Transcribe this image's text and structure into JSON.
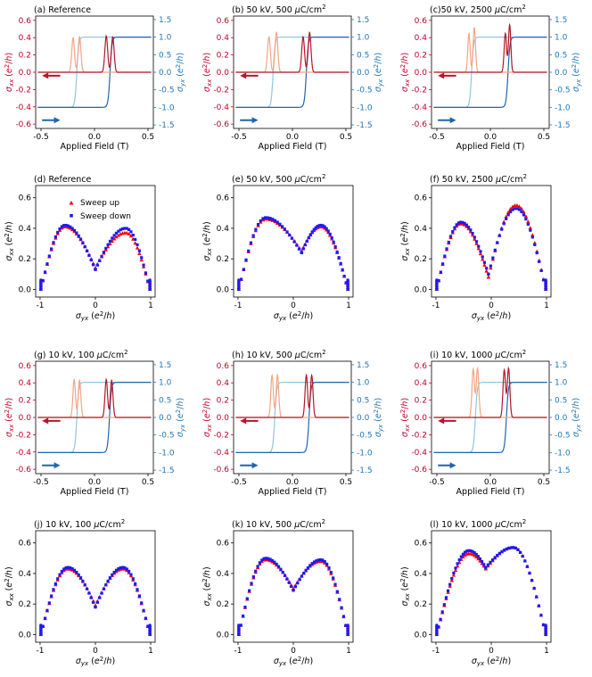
{
  "colors": {
    "sxx_up": "#b2182b",
    "sxx_down": "#f4a582",
    "syx_up": "#2166ac",
    "syx_down": "#92c5de",
    "sweep_up": "#ff0000",
    "sweep_down": "#1a1aff",
    "left_axis": "#c0002a",
    "right_axis": "#1f77b4"
  },
  "labels": {
    "xlabel_field": "Applied Field (T)",
    "ylabel_sxx": "σxx (e²/h)",
    "ylabel_syx": "σyx (e²/h)",
    "xlabel_syx": "σyx (e²/h)",
    "legend_up": "Sweep up",
    "legend_down": "Sweep down"
  },
  "chart_data": [
    {
      "id": "a",
      "type": "line",
      "title": "(a)     Reference",
      "xlim": [
        -0.55,
        0.55
      ],
      "ylim_left": [
        -0.65,
        0.65
      ],
      "ylim_right": [
        -1.6,
        1.6
      ],
      "xticks": [
        "-0.5",
        "0.0",
        "0.5"
      ],
      "yticks_left": [
        "-0.6",
        "-0.4",
        "-0.2",
        "0.0",
        "0.2",
        "0.4",
        "0.6"
      ],
      "yticks_right": [
        "-1.5",
        "-1.0",
        "-0.5",
        "0.0",
        "0.5",
        "1.0",
        "1.5"
      ],
      "sxx_up_peaks": [
        [
          0.11,
          0.42
        ],
        [
          0.17,
          0.41
        ]
      ],
      "sxx_down_peaks": [
        [
          -0.2,
          0.4
        ],
        [
          -0.14,
          0.41
        ]
      ],
      "syx_up_switch": 0.145,
      "syx_down_switch": -0.165,
      "peak_width": 0.013
    },
    {
      "id": "b",
      "type": "line",
      "title": "(b) 50 kV, 500 μC/cm²",
      "xlim": [
        -0.55,
        0.55
      ],
      "ylim_left": [
        -0.65,
        0.65
      ],
      "ylim_right": [
        -1.6,
        1.6
      ],
      "xticks": [
        "-0.5",
        "0.0",
        "0.5"
      ],
      "yticks_left": [
        "-0.6",
        "-0.4",
        "-0.2",
        "0.0",
        "0.2",
        "0.4",
        "0.6"
      ],
      "yticks_right": [
        "-1.5",
        "-1.0",
        "-0.5",
        "0.0",
        "0.5",
        "1.0",
        "1.5"
      ],
      "sxx_up_peaks": [
        [
          0.1,
          0.41
        ],
        [
          0.16,
          0.46
        ]
      ],
      "sxx_down_peaks": [
        [
          -0.22,
          0.41
        ],
        [
          -0.15,
          0.46
        ]
      ],
      "syx_up_switch": 0.13,
      "syx_down_switch": -0.18,
      "peak_width": 0.013
    },
    {
      "id": "c",
      "type": "line",
      "title": "(c)50 kV, 2500 μC/cm²",
      "xlim": [
        -0.55,
        0.55
      ],
      "ylim_left": [
        -0.65,
        0.65
      ],
      "ylim_right": [
        -1.6,
        1.6
      ],
      "xticks": [
        "-0.5",
        "0.0",
        "0.5"
      ],
      "yticks_left": [
        "-0.6",
        "-0.4",
        "-0.2",
        "0.0",
        "0.2",
        "0.4",
        "0.6"
      ],
      "yticks_right": [
        "-1.5",
        "-1.0",
        "-0.5",
        "0.0",
        "0.5",
        "1.0",
        "1.5"
      ],
      "sxx_up_peaks": [
        [
          0.14,
          0.45
        ],
        [
          0.18,
          0.55
        ]
      ],
      "sxx_down_peaks": [
        [
          -0.2,
          0.45
        ],
        [
          -0.15,
          0.52
        ]
      ],
      "syx_up_switch": 0.165,
      "syx_down_switch": -0.175,
      "peak_width": 0.011
    },
    {
      "id": "d",
      "type": "scatter",
      "title": "(d)     Reference",
      "xlim": [
        -1.08,
        1.08
      ],
      "ylim": [
        -0.05,
        0.68
      ],
      "xticks": [
        "-1",
        "0",
        "1"
      ],
      "yticks": [
        "0.0",
        "0.2",
        "0.4",
        "0.6"
      ],
      "show_legend": true,
      "up": {
        "left_peak": [
          -0.55,
          0.41
        ],
        "right_peak": [
          0.55,
          0.37
        ],
        "dip": [
          0,
          0.14
        ]
      },
      "down": {
        "left_peak": [
          -0.55,
          0.42
        ],
        "right_peak": [
          0.55,
          0.4
        ],
        "dip": [
          0,
          0.13
        ]
      }
    },
    {
      "id": "e",
      "type": "scatter",
      "title": "(e)  50 kV, 500 μC/cm²",
      "xlim": [
        -1.08,
        1.08
      ],
      "ylim": [
        -0.05,
        0.68
      ],
      "xticks": [
        "-1",
        "0",
        "1"
      ],
      "yticks": [
        "0.0",
        "0.2",
        "0.4",
        "0.6"
      ],
      "show_legend": false,
      "up": {
        "left_peak": [
          -0.5,
          0.46
        ],
        "right_peak": [
          0.5,
          0.41
        ],
        "dip": [
          0.15,
          0.25
        ]
      },
      "down": {
        "left_peak": [
          -0.5,
          0.47
        ],
        "right_peak": [
          0.5,
          0.42
        ],
        "dip": [
          0.15,
          0.24
        ]
      }
    },
    {
      "id": "f",
      "type": "scatter",
      "title": "(f)  50 kV, 2500 μC/cm²",
      "xlim": [
        -1.08,
        1.08
      ],
      "ylim": [
        -0.05,
        0.68
      ],
      "xticks": [
        "-1",
        "0",
        "1"
      ],
      "yticks": [
        "0.0",
        "0.2",
        "0.4",
        "0.6"
      ],
      "show_legend": false,
      "up": {
        "left_peak": [
          -0.55,
          0.43
        ],
        "right_peak": [
          0.45,
          0.55
        ],
        "dip": [
          -0.05,
          0.08
        ]
      },
      "down": {
        "left_peak": [
          -0.55,
          0.44
        ],
        "right_peak": [
          0.45,
          0.53
        ],
        "dip": [
          -0.05,
          0.1
        ]
      }
    },
    {
      "id": "g",
      "type": "line",
      "title": "(g)  10 kV, 100 μC/cm²",
      "xlim": [
        -0.55,
        0.55
      ],
      "ylim_left": [
        -0.65,
        0.65
      ],
      "ylim_right": [
        -1.6,
        1.6
      ],
      "xticks": [
        "-0.5",
        "0.0",
        "0.5"
      ],
      "yticks_left": [
        "-0.6",
        "-0.4",
        "-0.2",
        "0.0",
        "0.2",
        "0.4",
        "0.6"
      ],
      "yticks_right": [
        "-1.5",
        "-1.0",
        "-0.5",
        "0.0",
        "0.5",
        "1.0",
        "1.5"
      ],
      "sxx_up_peaks": [
        [
          0.11,
          0.44
        ],
        [
          0.16,
          0.43
        ]
      ],
      "sxx_down_peaks": [
        [
          -0.19,
          0.44
        ],
        [
          -0.14,
          0.43
        ]
      ],
      "syx_up_switch": 0.14,
      "syx_down_switch": -0.165,
      "peak_width": 0.012
    },
    {
      "id": "h",
      "type": "line",
      "title": "(h)  10 kV, 500 μC/cm²",
      "xlim": [
        -0.55,
        0.55
      ],
      "ylim_left": [
        -0.65,
        0.65
      ],
      "ylim_right": [
        -1.6,
        1.6
      ],
      "xticks": [
        "-0.5",
        "0.0",
        "0.5"
      ],
      "yticks_left": [
        "-0.6",
        "-0.4",
        "-0.2",
        "0.0",
        "0.2",
        "0.4",
        "0.6"
      ],
      "yticks_right": [
        "-1.5",
        "-1.0",
        "-0.5",
        "0.0",
        "0.5",
        "1.0",
        "1.5"
      ],
      "sxx_up_peaks": [
        [
          0.13,
          0.49
        ],
        [
          0.18,
          0.49
        ]
      ],
      "sxx_down_peaks": [
        [
          -0.19,
          0.49
        ],
        [
          -0.14,
          0.49
        ]
      ],
      "syx_up_switch": 0.155,
      "syx_down_switch": -0.165,
      "peak_width": 0.012
    },
    {
      "id": "i",
      "type": "line",
      "title": "(i)  10 kV, 1000 μC/cm²",
      "xlim": [
        -0.55,
        0.55
      ],
      "ylim_left": [
        -0.65,
        0.65
      ],
      "ylim_right": [
        -1.6,
        1.6
      ],
      "xticks": [
        "-0.5",
        "0.0",
        "0.5"
      ],
      "yticks_left": [
        "-0.6",
        "-0.4",
        "-0.2",
        "0.0",
        "0.2",
        "0.4",
        "0.6"
      ],
      "yticks_right": [
        "-1.5",
        "-1.0",
        "-0.5",
        "0.0",
        "0.5",
        "1.0",
        "1.5"
      ],
      "sxx_up_peaks": [
        [
          0.13,
          0.55
        ],
        [
          0.17,
          0.57
        ]
      ],
      "sxx_down_peaks": [
        [
          -0.16,
          0.56
        ],
        [
          -0.12,
          0.57
        ]
      ],
      "syx_up_switch": 0.15,
      "syx_down_switch": -0.14,
      "peak_width": 0.012
    },
    {
      "id": "j",
      "type": "scatter",
      "title": "(j)   10 kV, 100 μC/cm²",
      "xlim": [
        -1.08,
        1.08
      ],
      "ylim": [
        -0.05,
        0.68
      ],
      "xticks": [
        "-1",
        "0",
        "1"
      ],
      "yticks": [
        "0.0",
        "0.2",
        "0.4",
        "0.6"
      ],
      "show_legend": false,
      "up": {
        "left_peak": [
          -0.5,
          0.43
        ],
        "right_peak": [
          0.5,
          0.43
        ],
        "dip": [
          0,
          0.19
        ]
      },
      "down": {
        "left_peak": [
          -0.5,
          0.44
        ],
        "right_peak": [
          0.5,
          0.44
        ],
        "dip": [
          0,
          0.18
        ]
      }
    },
    {
      "id": "k",
      "type": "scatter",
      "title": "(k)  10 kV, 500 μC/cm²",
      "xlim": [
        -1.08,
        1.08
      ],
      "ylim": [
        -0.05,
        0.68
      ],
      "xticks": [
        "-1",
        "0",
        "1"
      ],
      "yticks": [
        "0.0",
        "0.2",
        "0.4",
        "0.6"
      ],
      "show_legend": false,
      "up": {
        "left_peak": [
          -0.5,
          0.49
        ],
        "right_peak": [
          0.5,
          0.48
        ],
        "dip": [
          0,
          0.3
        ]
      },
      "down": {
        "left_peak": [
          -0.5,
          0.5
        ],
        "right_peak": [
          0.5,
          0.49
        ],
        "dip": [
          0,
          0.29
        ]
      }
    },
    {
      "id": "l",
      "type": "scatter",
      "title": "(l)  10 kV, 1000 μC/cm²",
      "xlim": [
        -1.08,
        1.08
      ],
      "ylim": [
        -0.05,
        0.68
      ],
      "xticks": [
        "-1",
        "0",
        "1"
      ],
      "yticks": [
        "0.0",
        "0.2",
        "0.4",
        "0.6"
      ],
      "show_legend": false,
      "up": {
        "left_peak": [
          -0.4,
          0.53
        ],
        "right_peak": [
          0.4,
          0.57
        ],
        "dip": [
          -0.1,
          0.43
        ]
      },
      "down": {
        "left_peak": [
          -0.4,
          0.55
        ],
        "right_peak": [
          0.4,
          0.57
        ],
        "dip": [
          -0.1,
          0.44
        ]
      }
    }
  ]
}
